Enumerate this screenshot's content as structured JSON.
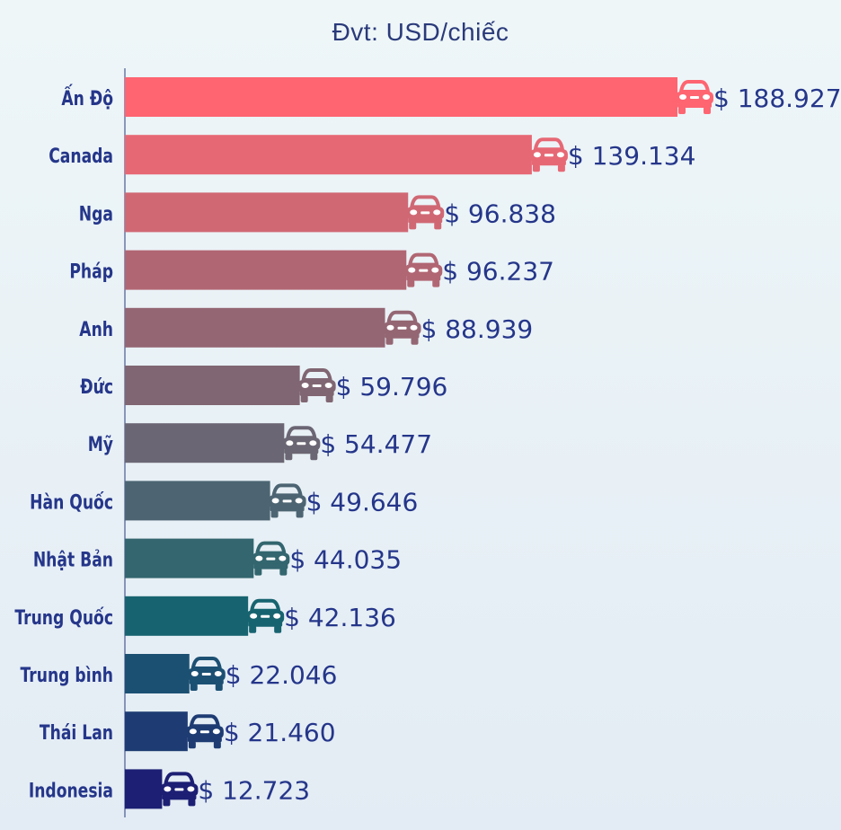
{
  "unit_label": "Đvt: USD/chiếc",
  "chart_data": {
    "type": "bar",
    "orientation": "horizontal",
    "title": "",
    "xlabel": "",
    "ylabel": "",
    "categories": [
      "Ấn Độ",
      "Canada",
      "Nga",
      "Pháp",
      "Anh",
      "Đức",
      "Mỹ",
      "Hàn Quốc",
      "Nhật Bản",
      "Trung Quốc",
      "Trung bình",
      "Thái Lan",
      "Indonesia"
    ],
    "values": [
      188927,
      139134,
      96838,
      96237,
      88939,
      59796,
      54477,
      49646,
      44035,
      42136,
      22046,
      21460,
      12723
    ],
    "value_labels": [
      "$ 188.927",
      "$ 139.134",
      "$ 96.838",
      "$ 96.237",
      "$ 88.939",
      "$ 59.796",
      "$ 54.477",
      "$ 49.646",
      "$ 44.035",
      "$ 42.136",
      "$ 22.046",
      "$ 21.460",
      "$ 12.723"
    ],
    "colors": [
      "#fe6571",
      "#e76875",
      "#d06874",
      "#b16673",
      "#946673",
      "#806672",
      "#6b6673",
      "#4d6573",
      "#33666f",
      "#176470",
      "#1c5073",
      "#1e3c73",
      "#1c1f73"
    ],
    "xlim": [
      0,
      188927
    ],
    "grid": false,
    "legend": "none",
    "mark_icon": "car-icon"
  }
}
